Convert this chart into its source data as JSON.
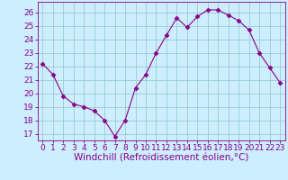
{
  "x": [
    0,
    1,
    2,
    3,
    4,
    5,
    6,
    7,
    8,
    9,
    10,
    11,
    12,
    13,
    14,
    15,
    16,
    17,
    18,
    19,
    20,
    21,
    22,
    23
  ],
  "y": [
    22.2,
    21.4,
    19.8,
    19.2,
    19.0,
    18.7,
    18.0,
    16.8,
    18.0,
    20.4,
    21.4,
    23.0,
    24.3,
    25.6,
    24.9,
    25.7,
    26.2,
    26.2,
    25.8,
    25.4,
    24.7,
    23.0,
    21.9,
    20.8
  ],
  "line_color": "#880088",
  "marker": "D",
  "marker_size": 2.5,
  "line_width": 0.8,
  "bg_color": "#cceeff",
  "grid_color": "#99cccc",
  "xlabel": "Windchill (Refroidissement éolien,°C)",
  "xlim": [
    -0.5,
    23.5
  ],
  "ylim": [
    16.5,
    26.8
  ],
  "yticks": [
    17,
    18,
    19,
    20,
    21,
    22,
    23,
    24,
    25,
    26
  ],
  "xticks": [
    0,
    1,
    2,
    3,
    4,
    5,
    6,
    7,
    8,
    9,
    10,
    11,
    12,
    13,
    14,
    15,
    16,
    17,
    18,
    19,
    20,
    21,
    22,
    23
  ],
  "xtick_labels": [
    "0",
    "1",
    "2",
    "3",
    "4",
    "5",
    "6",
    "7",
    "8",
    "9",
    "10",
    "11",
    "12",
    "13",
    "14",
    "15",
    "16",
    "17",
    "18",
    "19",
    "20",
    "21",
    "22",
    "23"
  ],
  "tick_color": "#880088",
  "label_color": "#880088",
  "xlabel_fontsize": 7.5,
  "tick_fontsize": 6.5
}
